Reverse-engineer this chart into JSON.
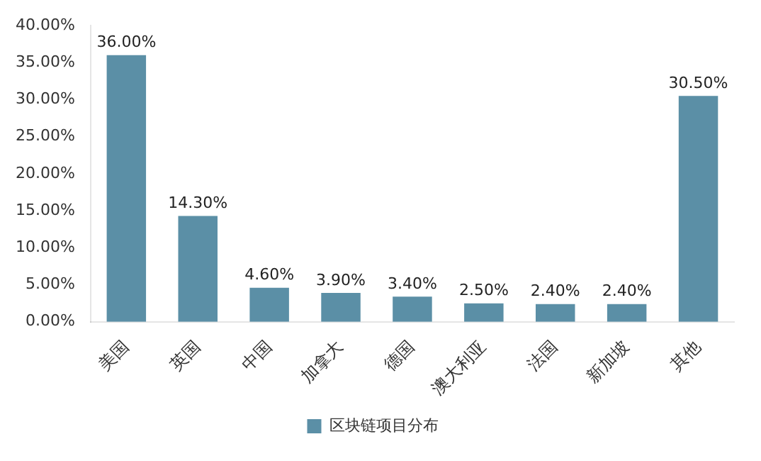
{
  "chart_data": {
    "type": "bar",
    "categories": [
      "美国",
      "英国",
      "中国",
      "加拿大",
      "德国",
      "澳大利亚",
      "法国",
      "新加坡",
      "其他"
    ],
    "series": [
      {
        "name": "区块链项目分布",
        "color": "#5b8fa6",
        "values": [
          36,
          14.3,
          4.6,
          3.9,
          3.4,
          2.5,
          2.4,
          2.4,
          30.5
        ]
      }
    ],
    "value_labels": [
      "36.00%",
      "14.30%",
      "4.60%",
      "3.90%",
      "3.40%",
      "2.50%",
      "2.40%",
      "2.40%",
      "30.50%"
    ],
    "ylim": [
      0,
      40
    ],
    "yticks": [
      {
        "value": 0,
        "label": "0.00%"
      },
      {
        "value": 5,
        "label": "5.00%"
      },
      {
        "value": 10,
        "label": "10.00%"
      },
      {
        "value": 15,
        "label": "15.00%"
      },
      {
        "value": 20,
        "label": "20.00%"
      },
      {
        "value": 25,
        "label": "25.00%"
      },
      {
        "value": 30,
        "label": "30.00%"
      },
      {
        "value": 35,
        "label": "35.00%"
      },
      {
        "value": 40,
        "label": "40.00%"
      }
    ],
    "legend": "bottom",
    "grid": false
  }
}
